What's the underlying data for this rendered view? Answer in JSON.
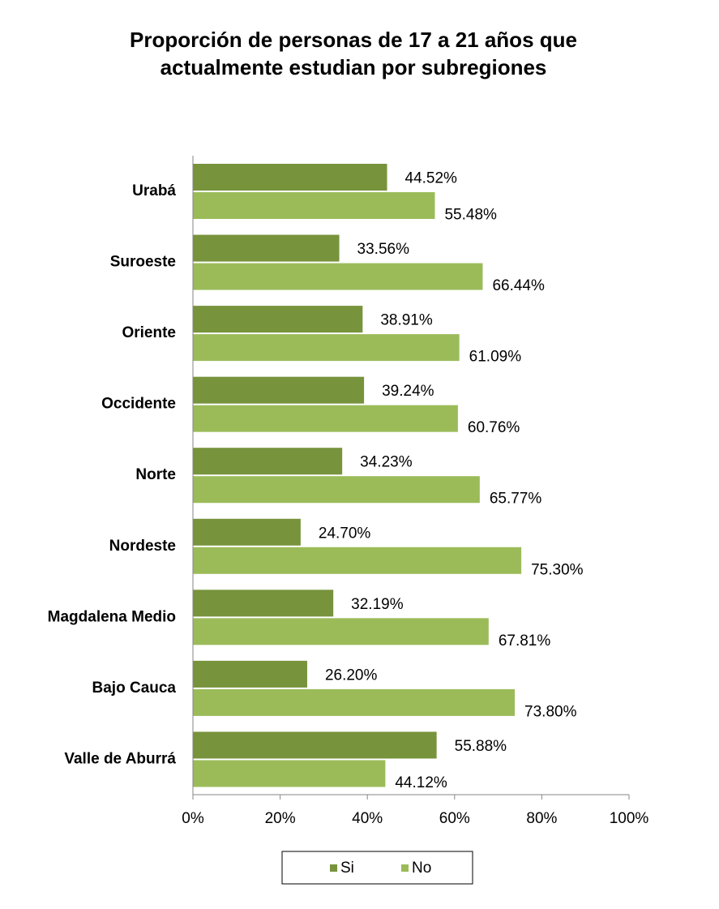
{
  "chart_data": {
    "type": "hbar",
    "title": "Proporción de personas de 17 a 21 años que actualmente estudian por subregiones",
    "categories": [
      "Urabá",
      "Suroeste",
      "Oriente",
      "Occidente",
      "Norte",
      "Nordeste",
      "Magdalena Medio",
      "Bajo Cauca",
      "Valle de Aburrá"
    ],
    "series": [
      {
        "name": "Si",
        "color": "#77933c",
        "values": [
          44.52,
          33.56,
          38.91,
          39.24,
          34.23,
          24.7,
          32.19,
          26.2,
          55.88
        ],
        "value_labels": [
          "44.52%",
          "33.56%",
          "38.91%",
          "39.24%",
          "34.23%",
          "24.70%",
          "32.19%",
          "26.20%",
          "55.88%"
        ]
      },
      {
        "name": "No",
        "color": "#9bbb59",
        "values": [
          55.48,
          66.44,
          61.09,
          60.76,
          65.77,
          75.3,
          67.81,
          73.8,
          44.12
        ],
        "value_labels": [
          "55.48%",
          "66.44%",
          "61.09%",
          "60.76%",
          "65.77%",
          "75.30%",
          "67.81%",
          "73.80%",
          "44.12%"
        ]
      }
    ],
    "xlim": [
      0,
      100
    ],
    "xticks": [
      {
        "value": 0,
        "label": "0%"
      },
      {
        "value": 20,
        "label": "20%"
      },
      {
        "value": 40,
        "label": "40%"
      },
      {
        "value": 60,
        "label": "60%"
      },
      {
        "value": 80,
        "label": "80%"
      },
      {
        "value": 100,
        "label": "100%"
      }
    ],
    "grid": false,
    "legend": "bottom"
  }
}
